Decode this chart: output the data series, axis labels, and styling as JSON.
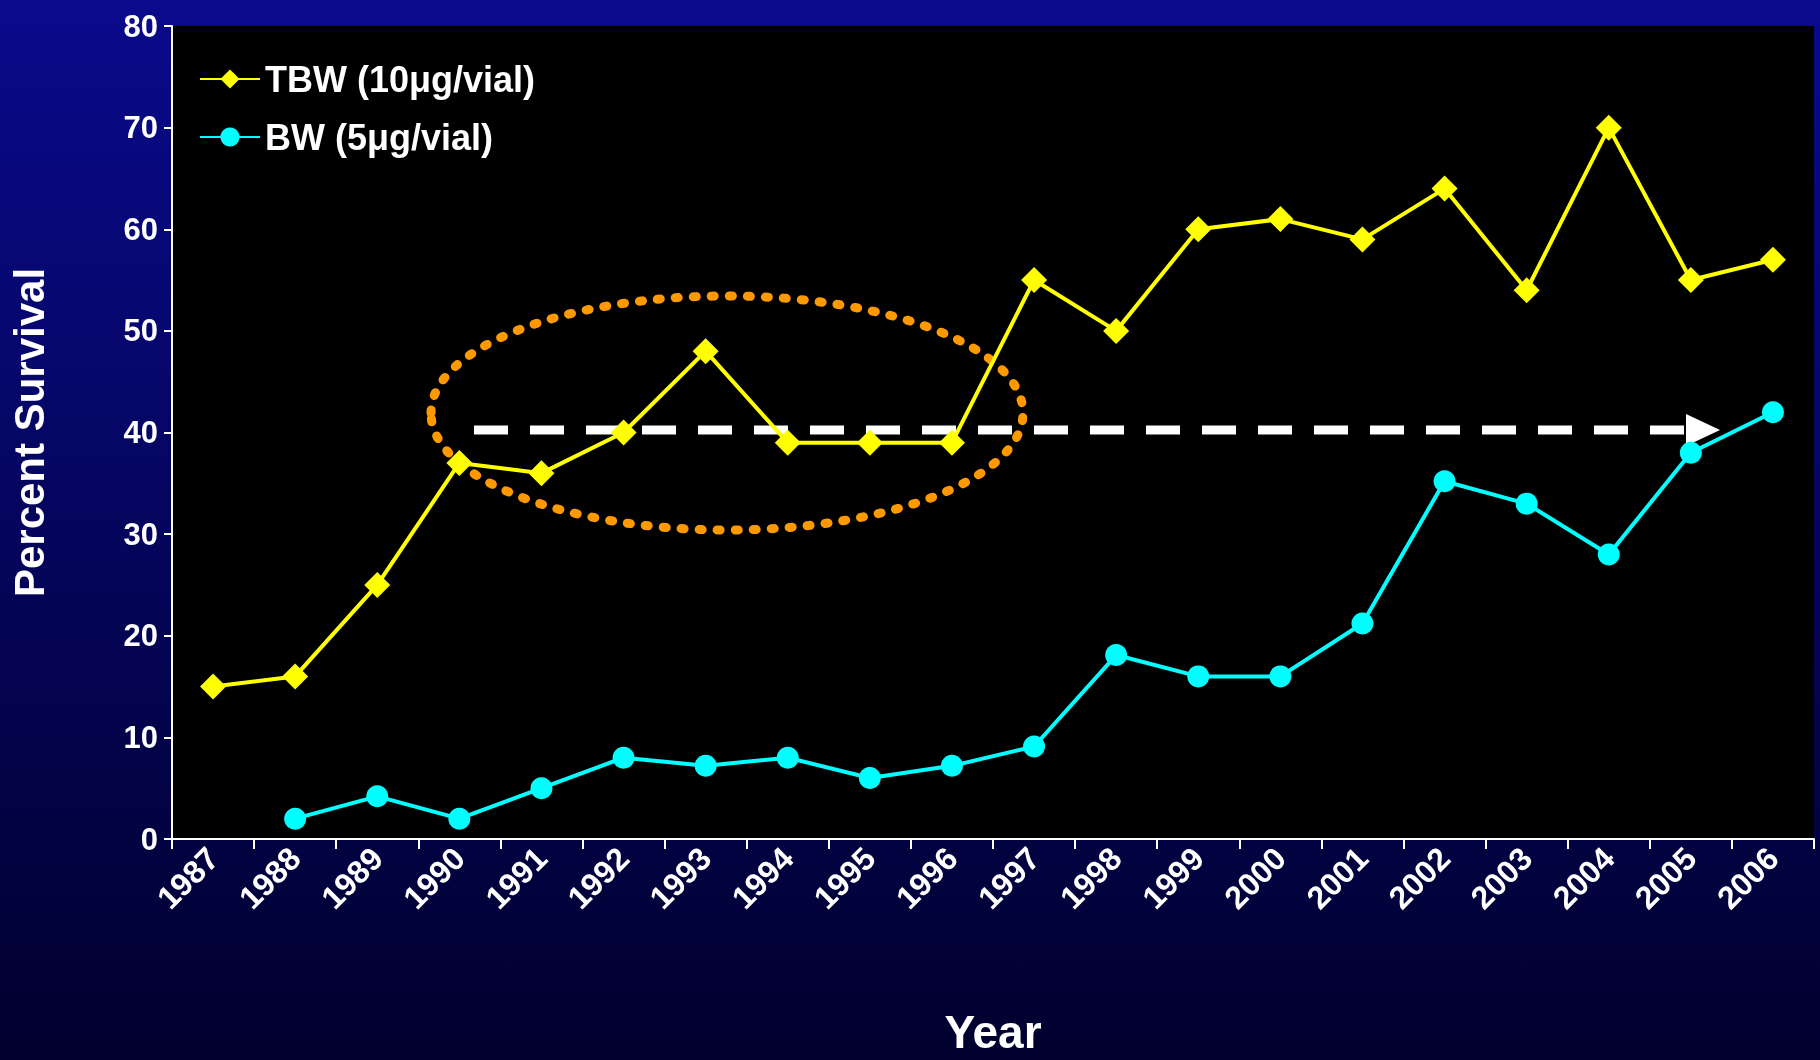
{
  "chart_data": {
    "type": "line",
    "xlabel": "Year",
    "ylabel": "Percent Survival",
    "categories": [
      "1987",
      "1988",
      "1989",
      "1990",
      "1991",
      "1992",
      "1993",
      "1994",
      "1995",
      "1996",
      "1997",
      "1998",
      "1999",
      "2000",
      "2001",
      "2002",
      "2003",
      "2004",
      "2005",
      "2006"
    ],
    "series": [
      {
        "name": "TBW (10μg/vial)",
        "color": "#ffff00",
        "marker": "diamond",
        "values": [
          15,
          16,
          25,
          37,
          36,
          40,
          48,
          39,
          39,
          39,
          55,
          50,
          60,
          61,
          59,
          64,
          54,
          70,
          55,
          57
        ]
      },
      {
        "name": "BW (5μg/vial)",
        "color": "#00ffff",
        "marker": "circle",
        "values": [
          null,
          2,
          4.2,
          2,
          5,
          8,
          7.2,
          8,
          6,
          7.2,
          9.1,
          18.1,
          16,
          16,
          21.2,
          35.2,
          33,
          28,
          38,
          42
        ]
      }
    ],
    "ylim": [
      0,
      80
    ],
    "yticks": [
      0,
      10,
      20,
      30,
      40,
      50,
      60,
      70,
      80
    ],
    "legend": "top left",
    "line_style": "solid"
  }
}
